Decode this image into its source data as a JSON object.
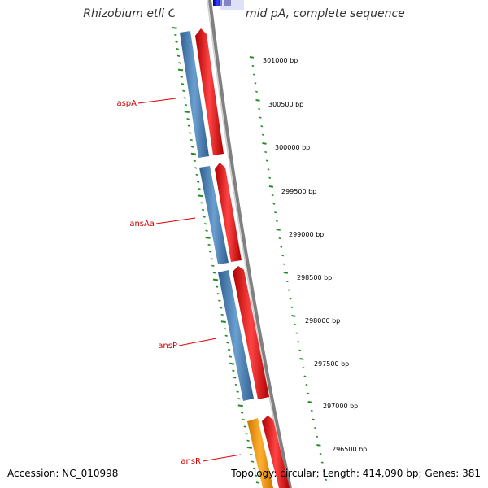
{
  "title": "Rhizobium etli CIAT 652 plasmid pA, complete sequence",
  "footer": {
    "accession": "Accession: NC_010998",
    "summary": "Topology: circular; Length: 414,090 bp; Genes: 381"
  },
  "scale_labels": [
    "301000 bp",
    "300500 bp",
    "300000 bp",
    "299500 bp",
    "299000 bp",
    "298500 bp",
    "298000 bp",
    "297500 bp",
    "297000 bp",
    "296500 bp"
  ],
  "gene_labels": [
    "aspA",
    "ansAa",
    "ansP",
    "ansR"
  ],
  "colors": {
    "cds": "#4a7fb5",
    "gene": "#ee1111",
    "regulator": "#ff9900",
    "neighbor": "#1a1acc",
    "tick": "#228b22",
    "backbone": "#808080",
    "label_line": "#dd0000"
  }
}
